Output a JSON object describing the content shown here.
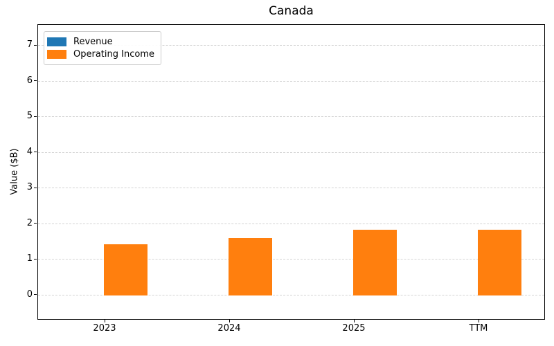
{
  "chart_data": {
    "type": "bar",
    "title": "Canada",
    "xlabel": "",
    "ylabel": "Value ($B)",
    "categories": [
      "2023",
      "2024",
      "2025",
      "TTM"
    ],
    "series": [
      {
        "name": "Revenue",
        "color": "#1f77b4",
        "values": [
          0,
          0,
          0,
          0
        ]
      },
      {
        "name": "Operating Income",
        "color": "#ff7f0e",
        "values": [
          1.43,
          1.61,
          1.84,
          1.84
        ]
      }
    ],
    "ylim": [
      -0.7,
      7.59
    ],
    "yticks": [
      0,
      1,
      2,
      3,
      4,
      5,
      6,
      7
    ],
    "grid": "horizontal-dashed",
    "grid_color": "#d2d2d2",
    "legend_position": "upper-left",
    "legend_labels": [
      "Revenue",
      "Operating Income"
    ]
  }
}
